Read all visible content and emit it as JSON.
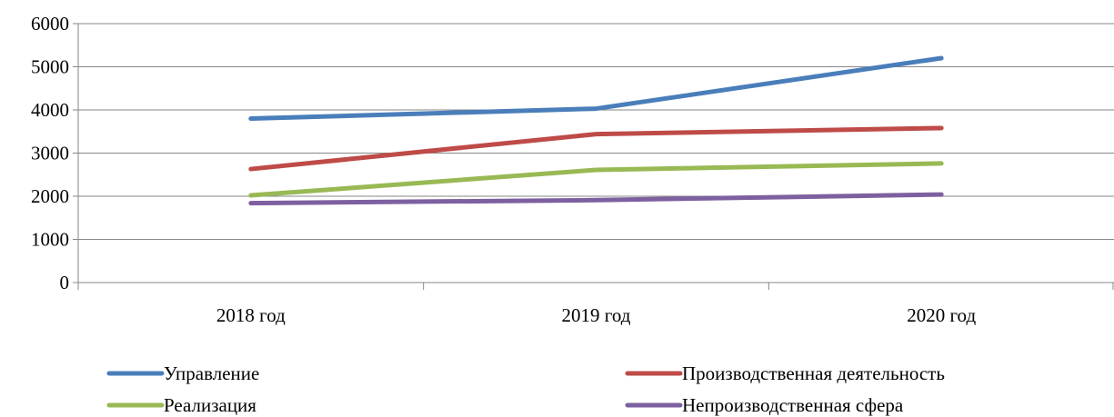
{
  "chart_data": {
    "type": "line",
    "categories": [
      "2018 год",
      "2019 год",
      "2020 год"
    ],
    "series": [
      {
        "name": "Управление",
        "values": [
          3800,
          4030,
          5200
        ],
        "color": "#4a7ebb"
      },
      {
        "name": "Производственная деятельность",
        "values": [
          2630,
          3440,
          3580
        ],
        "color": "#be4b48"
      },
      {
        "name": "Реализация",
        "values": [
          2020,
          2610,
          2760
        ],
        "color": "#98b954"
      },
      {
        "name": "Непроизводственная сфера",
        "values": [
          1840,
          1910,
          2040
        ],
        "color": "#7d60a0"
      }
    ],
    "y_ticks": [
      "0",
      "1000",
      "2000",
      "3000",
      "4000",
      "5000",
      "6000"
    ],
    "ylim": [
      0,
      6000
    ],
    "grid": true,
    "legend_position": "bottom",
    "title": "",
    "xlabel": "",
    "ylabel": ""
  }
}
